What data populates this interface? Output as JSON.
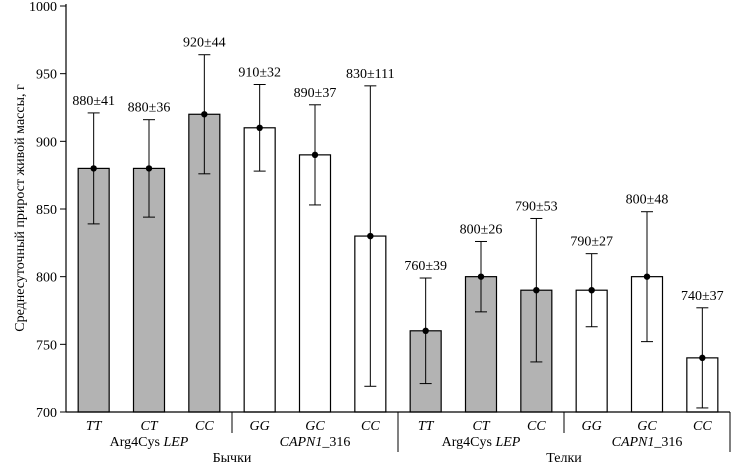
{
  "chart_data": {
    "type": "bar",
    "ylabel": "Среднесуточный прирост живой массы, г",
    "ylim": [
      700,
      1000
    ],
    "yticks": [
      700,
      750,
      800,
      850,
      900,
      950,
      1000
    ],
    "bar_colors": {
      "LEP": "#b3b3b3",
      "CAPN1": "#ffffff"
    },
    "bars": [
      {
        "genotype": "TT",
        "value": 880,
        "err": 41,
        "label": "880±41",
        "marker": "LEP"
      },
      {
        "genotype": "CT",
        "value": 880,
        "err": 36,
        "label": "880±36",
        "marker": "LEP"
      },
      {
        "genotype": "CC",
        "value": 920,
        "err": 44,
        "label": "920±44",
        "marker": "LEP"
      },
      {
        "genotype": "GG",
        "value": 910,
        "err": 32,
        "label": "910±32",
        "marker": "CAPN1"
      },
      {
        "genotype": "GC",
        "value": 890,
        "err": 37,
        "label": "890±37",
        "marker": "CAPN1"
      },
      {
        "genotype": "CC",
        "value": 830,
        "err": 111,
        "label": "830±111",
        "marker": "CAPN1"
      },
      {
        "genotype": "TT",
        "value": 760,
        "err": 39,
        "label": "760±39",
        "marker": "LEP"
      },
      {
        "genotype": "CT",
        "value": 800,
        "err": 26,
        "label": "800±26",
        "marker": "LEP"
      },
      {
        "genotype": "CC",
        "value": 790,
        "err": 53,
        "label": "790±53",
        "marker": "LEP"
      },
      {
        "genotype": "GG",
        "value": 790,
        "err": 27,
        "label": "790±27",
        "marker": "CAPN1"
      },
      {
        "genotype": "GC",
        "value": 800,
        "err": 48,
        "label": "800±48",
        "marker": "CAPN1"
      },
      {
        "genotype": "CC",
        "value": 740,
        "err": 37,
        "label": "740±37",
        "marker": "CAPN1"
      }
    ],
    "marker_groups": [
      {
        "prefix": "Arg4Cys ",
        "italic": "LEP",
        "suffix": "",
        "from": 0,
        "to": 2
      },
      {
        "prefix": "",
        "italic": "CAPN1",
        "suffix": "_316",
        "from": 3,
        "to": 5
      },
      {
        "prefix": "Arg4Cys ",
        "italic": "LEP",
        "suffix": "",
        "from": 6,
        "to": 8
      },
      {
        "prefix": "",
        "italic": "CAPN1",
        "suffix": "_316",
        "from": 9,
        "to": 11
      }
    ],
    "sex_groups": [
      {
        "label": "Бычки",
        "from": 0,
        "to": 5
      },
      {
        "label": "Телки",
        "from": 6,
        "to": 11
      }
    ]
  }
}
